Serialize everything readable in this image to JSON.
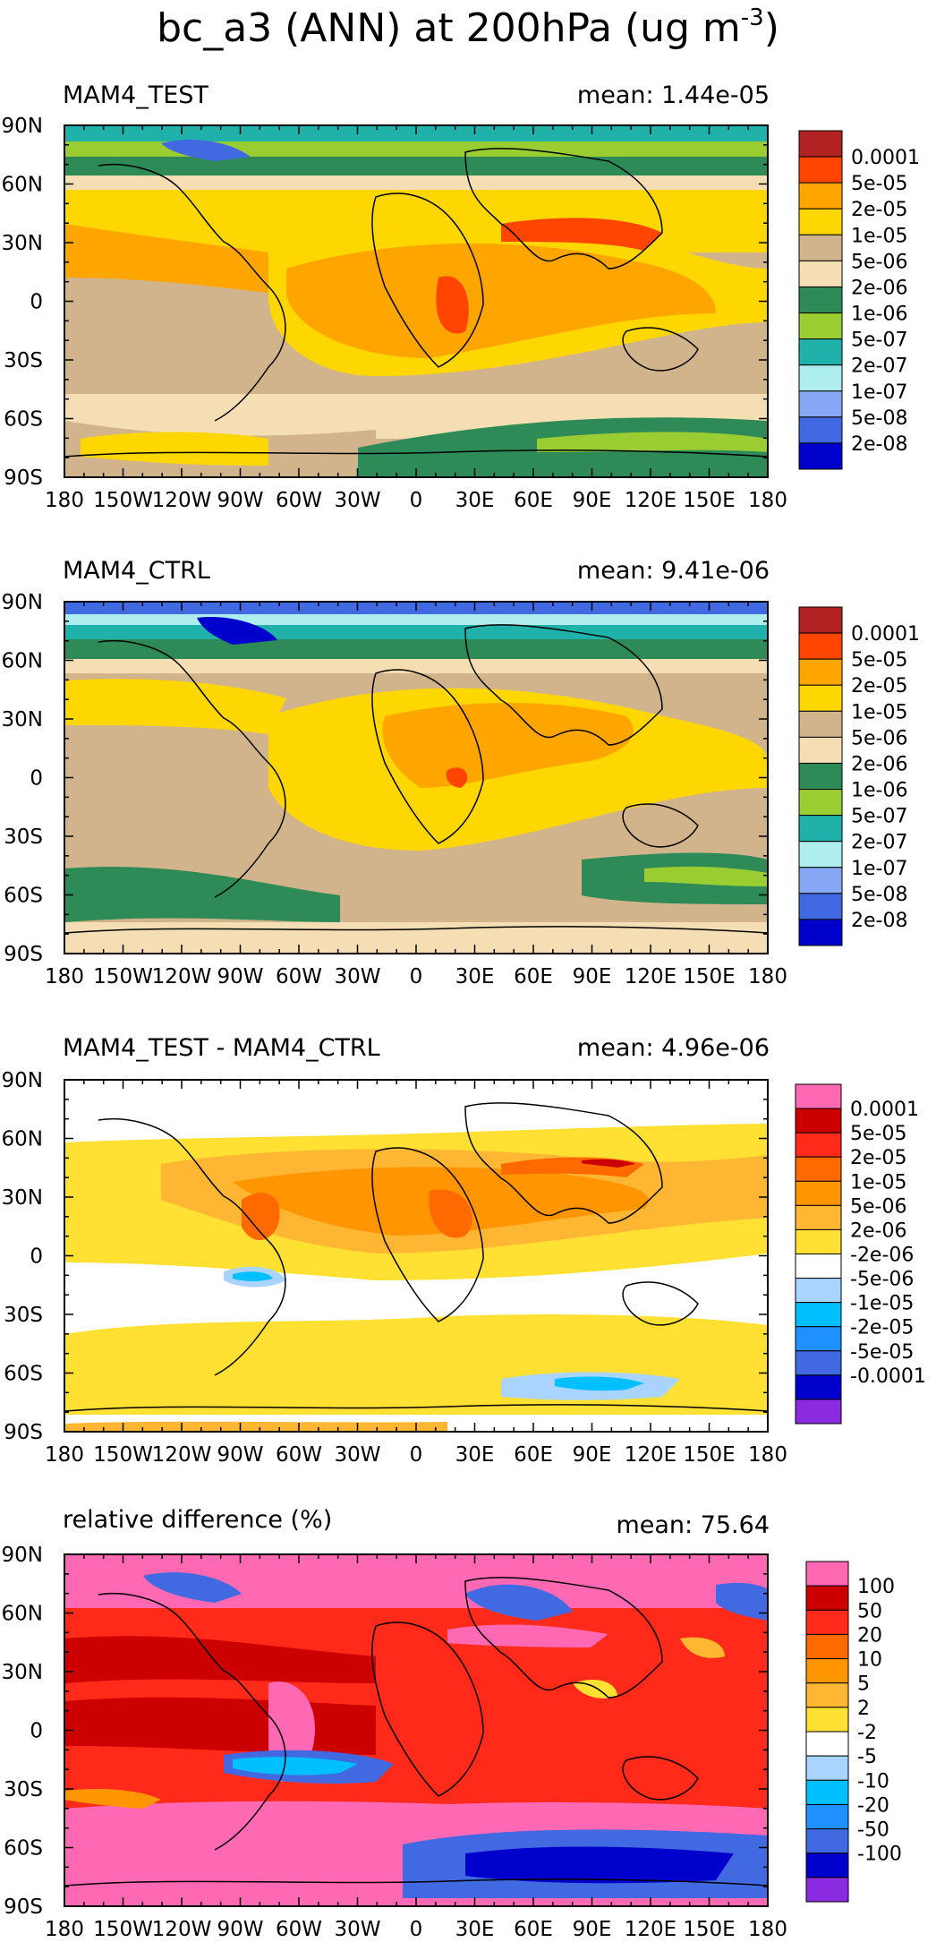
{
  "page": {
    "title_main": "bc_a3 (ANN) at 200hPa (ug m",
    "title_exponent": "-3",
    "title_close": ")"
  },
  "axes": {
    "x_ticks": [
      "180",
      "150W",
      "120W",
      "90W",
      "60W",
      "30W",
      "0",
      "30E",
      "60E",
      "90E",
      "120E",
      "150E",
      "180"
    ],
    "y_ticks": [
      "90N",
      "60N",
      "30N",
      "0",
      "30S",
      "60S",
      "90S"
    ]
  },
  "panels": [
    {
      "id": "test",
      "label": "MAM4_TEST",
      "mean_text": "mean: 1.44e-05",
      "colorbar": {
        "colors": [
          "#b22222",
          "#ff4500",
          "#ffa500",
          "#ffd700",
          "#d2b48c",
          "#f5deb3",
          "#2e8b57",
          "#9acd32",
          "#20b2aa",
          "#afeeee",
          "#87a8f5",
          "#4169e1",
          "#0000cd"
        ],
        "labels": [
          "0.0001",
          "5e-05",
          "2e-05",
          "1e-05",
          "5e-06",
          "2e-06",
          "1e-06",
          "5e-07",
          "2e-07",
          "1e-07",
          "5e-08",
          "2e-08"
        ]
      }
    },
    {
      "id": "ctrl",
      "label": "MAM4_CTRL",
      "mean_text": "mean: 9.41e-06",
      "colorbar": {
        "colors": [
          "#b22222",
          "#ff4500",
          "#ffa500",
          "#ffd700",
          "#d2b48c",
          "#f5deb3",
          "#2e8b57",
          "#9acd32",
          "#20b2aa",
          "#afeeee",
          "#87a8f5",
          "#4169e1",
          "#0000cd"
        ],
        "labels": [
          "0.0001",
          "5e-05",
          "2e-05",
          "1e-05",
          "5e-06",
          "2e-06",
          "1e-06",
          "5e-07",
          "2e-07",
          "1e-07",
          "5e-08",
          "2e-08"
        ]
      }
    },
    {
      "id": "diff",
      "label": "MAM4_TEST - MAM4_CTRL",
      "mean_text": "mean: 4.96e-06",
      "colorbar": {
        "colors": [
          "#ff69b4",
          "#cc0000",
          "#ff2a1a",
          "#ff6a00",
          "#ff9500",
          "#ffb733",
          "#ffe033",
          "#ffffff",
          "#a9d4ff",
          "#00bfff",
          "#1e90ff",
          "#4169e1",
          "#0000cd",
          "#8a2be2"
        ],
        "labels": [
          "0.0001",
          "5e-05",
          "2e-05",
          "1e-05",
          "5e-06",
          "2e-06",
          "-2e-06",
          "-5e-06",
          "-1e-05",
          "-2e-05",
          "-5e-05",
          "-0.0001"
        ]
      }
    },
    {
      "id": "reldiff",
      "label": "relative difference (%)",
      "mean_text": "mean: 75.64",
      "colorbar": {
        "colors": [
          "#ff69b4",
          "#cc0000",
          "#ff2a1a",
          "#ff6a00",
          "#ff9500",
          "#ffb733",
          "#ffe033",
          "#ffffff",
          "#a9d4ff",
          "#00bfff",
          "#1e90ff",
          "#4169e1",
          "#0000cd",
          "#8a2be2"
        ],
        "labels": [
          "100",
          "50",
          "20",
          "10",
          "5",
          "2",
          "-2",
          "-5",
          "-10",
          "-20",
          "-50",
          "-100"
        ]
      }
    }
  ]
}
